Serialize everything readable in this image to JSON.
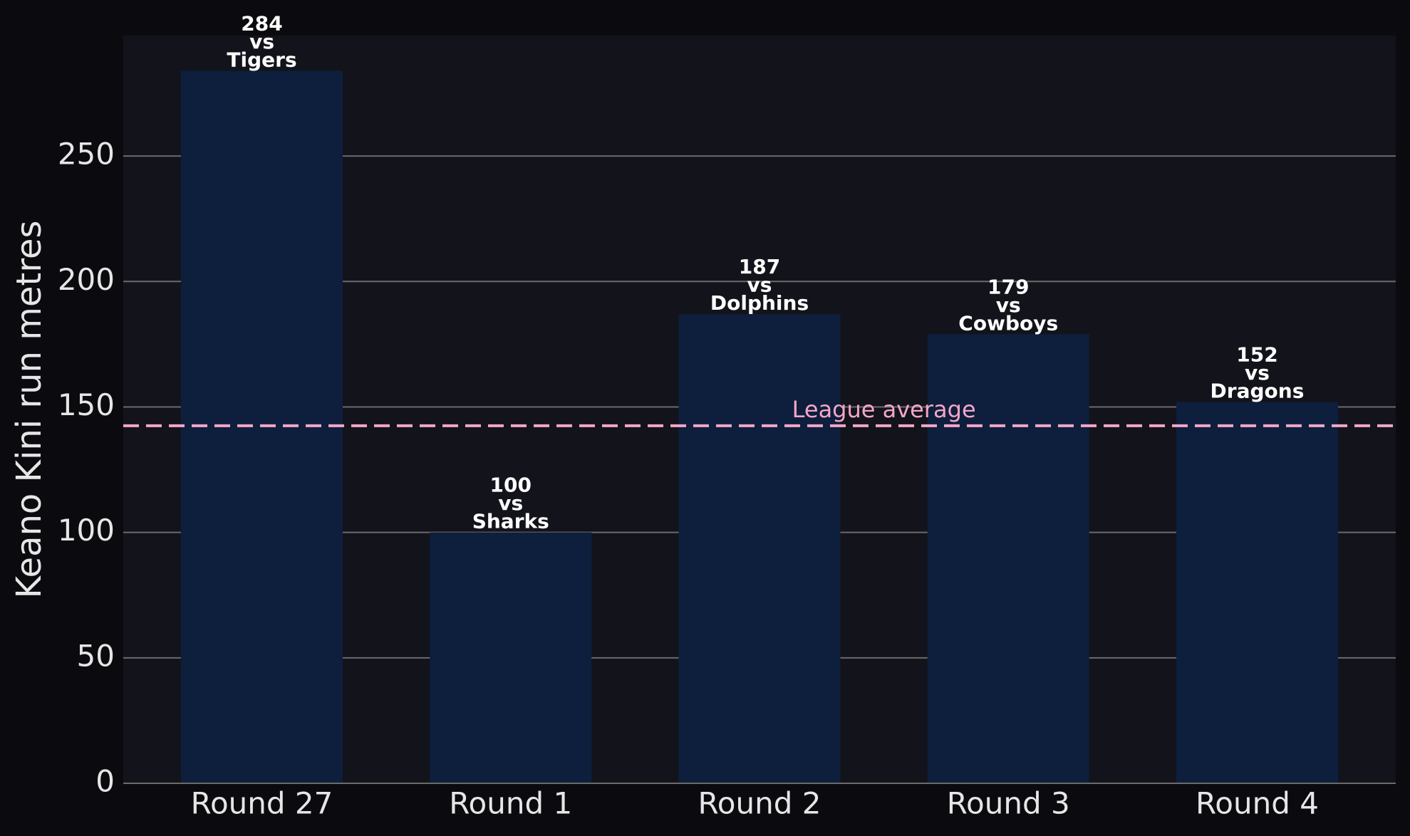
{
  "chart_data": {
    "type": "bar",
    "y_label": "Keano Kini run metres",
    "categories": [
      "Round 27",
      "Round 1",
      "Round 2",
      "Round 3",
      "Round 4"
    ],
    "values": [
      284,
      100,
      187,
      179,
      152
    ],
    "value_labels": [
      "284\nvs\nTigers",
      "100\nvs\nSharks",
      "187\nvs\nDolphins",
      "179\nvs\nCowboys",
      "152\nvs\nDragons"
    ],
    "color": "#0d1f3c",
    "ylim": [
      0,
      298
    ],
    "yticks": [
      0,
      50,
      100,
      150,
      200,
      250
    ],
    "grid": true,
    "reference_lines": [
      {
        "value": 142.5,
        "label": "League average",
        "color": "#f4a6c8"
      }
    ]
  }
}
